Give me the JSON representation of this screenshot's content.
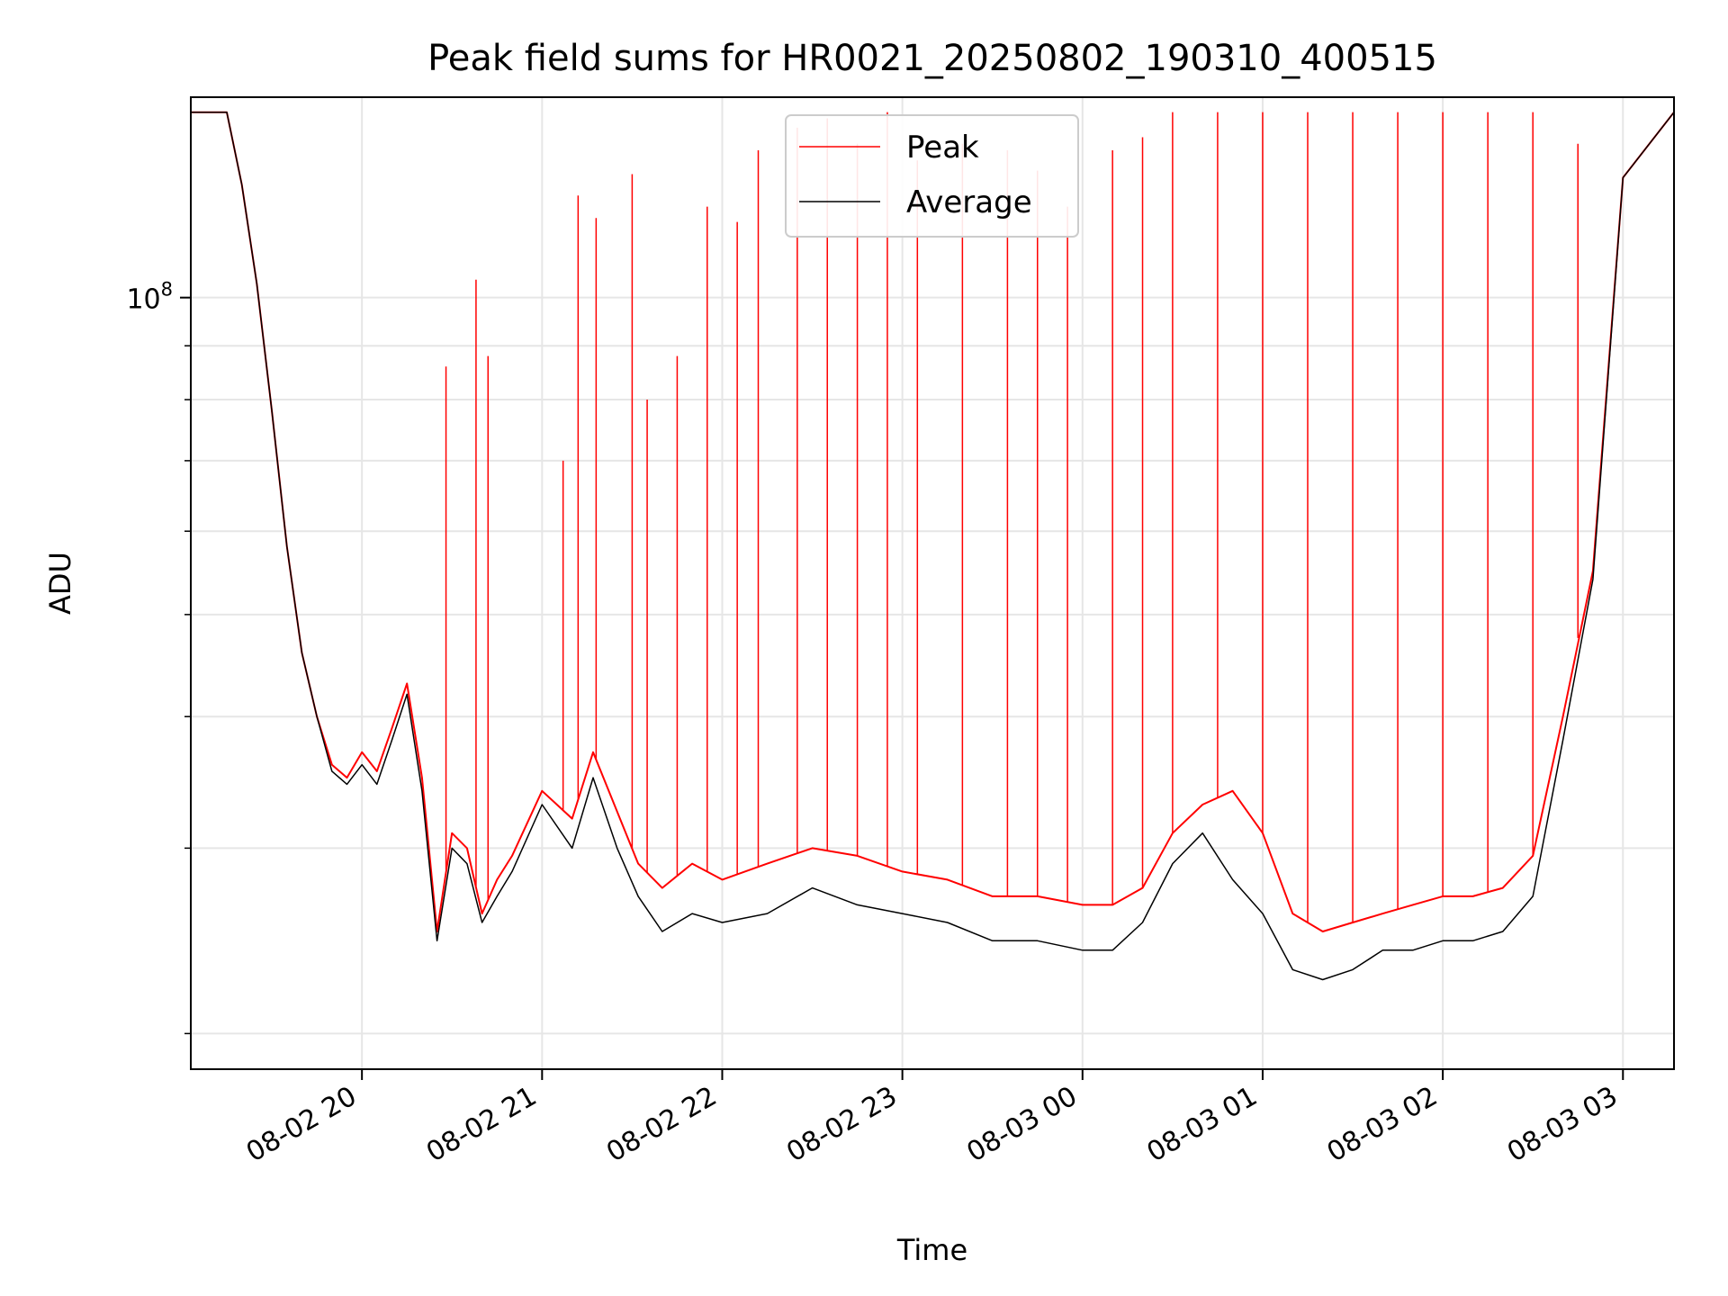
{
  "chart_data": {
    "type": "line",
    "title": "Peak field sums for HR0021_20250802_190310_400515",
    "xlabel": "Time",
    "ylabel": "ADU",
    "y_scale": "log",
    "grid": true,
    "legend_placement": "upper center",
    "x_tick_labels": [
      "08-02 20",
      "08-02 21",
      "08-02 22",
      "08-02 23",
      "08-03 00",
      "08-03 01",
      "08-03 02",
      "08-03 03"
    ],
    "x_ticks": [
      "2025-08-02T20:00",
      "2025-08-02T21:00",
      "2025-08-02T22:00",
      "2025-08-02T23:00",
      "2025-08-03T00:00",
      "2025-08-03T01:00",
      "2025-08-03T02:00",
      "2025-08-03T03:00"
    ],
    "xlim": [
      "2025-08-02T19:03",
      "2025-08-03T03:17"
    ],
    "ylim": [
      18500000,
      155000000
    ],
    "y_major_tick_label": "10^8",
    "y_major_tick": 100000000,
    "y_minor_ticks": [
      20000000,
      30000000,
      40000000,
      50000000,
      60000000,
      70000000,
      80000000,
      90000000,
      200000000
    ],
    "x": [
      "2025-08-02T19:03",
      "2025-08-02T19:15",
      "2025-08-02T19:20",
      "2025-08-02T19:25",
      "2025-08-02T19:30",
      "2025-08-02T19:35",
      "2025-08-02T19:40",
      "2025-08-02T19:45",
      "2025-08-02T19:50",
      "2025-08-02T19:55",
      "2025-08-02T20:00",
      "2025-08-02T20:05",
      "2025-08-02T20:10",
      "2025-08-02T20:15",
      "2025-08-02T20:20",
      "2025-08-02T20:25",
      "2025-08-02T20:30",
      "2025-08-02T20:35",
      "2025-08-02T20:40",
      "2025-08-02T20:45",
      "2025-08-02T20:50",
      "2025-08-02T21:00",
      "2025-08-02T21:10",
      "2025-08-02T21:17",
      "2025-08-02T21:25",
      "2025-08-02T21:32",
      "2025-08-02T21:40",
      "2025-08-02T21:50",
      "2025-08-02T22:00",
      "2025-08-02T22:15",
      "2025-08-02T22:30",
      "2025-08-02T22:45",
      "2025-08-02T23:00",
      "2025-08-02T23:15",
      "2025-08-02T23:30",
      "2025-08-02T23:45",
      "2025-08-03T00:00",
      "2025-08-03T00:10",
      "2025-08-03T00:20",
      "2025-08-03T00:30",
      "2025-08-03T00:40",
      "2025-08-03T00:50",
      "2025-08-03T01:00",
      "2025-08-03T01:10",
      "2025-08-03T01:20",
      "2025-08-03T01:30",
      "2025-08-03T01:40",
      "2025-08-03T01:50",
      "2025-08-03T02:00",
      "2025-08-03T02:10",
      "2025-08-03T02:20",
      "2025-08-03T02:30",
      "2025-08-03T02:40",
      "2025-08-03T02:50",
      "2025-08-03T03:00",
      "2025-08-03T03:17"
    ],
    "series": [
      {
        "name": "Peak",
        "color": "#ff0000",
        "values": [
          150000000,
          150000000,
          128000000,
          103000000,
          78000000,
          58000000,
          46000000,
          40000000,
          36000000,
          35000000,
          37000000,
          35500000,
          39000000,
          43000000,
          35000000,
          25000000,
          31000000,
          30000000,
          26000000,
          28000000,
          29500000,
          34000000,
          32000000,
          37000000,
          32500000,
          29000000,
          27500000,
          29000000,
          28000000,
          29000000,
          30000000,
          29500000,
          28500000,
          28000000,
          27000000,
          27000000,
          26500000,
          26500000,
          27500000,
          31000000,
          33000000,
          34000000,
          31000000,
          26000000,
          25000000,
          25500000,
          26000000,
          26500000,
          27000000,
          27000000,
          27500000,
          29500000,
          40000000,
          55000000,
          130000000,
          150000000
        ],
        "spikes": [
          [
            "2025-08-02T20:28",
            86000000
          ],
          [
            "2025-08-02T20:38",
            104000000
          ],
          [
            "2025-08-02T20:42",
            88000000
          ],
          [
            "2025-08-02T21:07",
            70000000
          ],
          [
            "2025-08-02T21:12",
            125000000
          ],
          [
            "2025-08-02T21:18",
            119000000
          ],
          [
            "2025-08-02T21:30",
            131000000
          ],
          [
            "2025-08-02T21:35",
            80000000
          ],
          [
            "2025-08-02T21:45",
            88000000
          ],
          [
            "2025-08-02T21:55",
            122000000
          ],
          [
            "2025-08-02T22:05",
            118000000
          ],
          [
            "2025-08-02T22:12",
            138000000
          ],
          [
            "2025-08-02T22:25",
            145000000
          ],
          [
            "2025-08-02T22:35",
            148000000
          ],
          [
            "2025-08-02T22:45",
            140000000
          ],
          [
            "2025-08-02T22:55",
            150000000
          ],
          [
            "2025-08-02T23:05",
            135000000
          ],
          [
            "2025-08-02T23:20",
            140000000
          ],
          [
            "2025-08-02T23:35",
            138000000
          ],
          [
            "2025-08-02T23:45",
            132000000
          ],
          [
            "2025-08-02T23:55",
            122000000
          ],
          [
            "2025-08-03T00:10",
            138000000
          ],
          [
            "2025-08-03T00:20",
            142000000
          ],
          [
            "2025-08-03T00:30",
            150000000
          ],
          [
            "2025-08-03T00:45",
            150000000
          ],
          [
            "2025-08-03T01:00",
            150000000
          ],
          [
            "2025-08-03T01:15",
            150000000
          ],
          [
            "2025-08-03T01:30",
            150000000
          ],
          [
            "2025-08-03T01:45",
            150000000
          ],
          [
            "2025-08-03T02:00",
            150000000
          ],
          [
            "2025-08-03T02:15",
            150000000
          ],
          [
            "2025-08-03T02:30",
            150000000
          ],
          [
            "2025-08-03T02:45",
            140000000
          ]
        ]
      },
      {
        "name": "Average",
        "color": "#000000",
        "values": [
          150000000,
          150000000,
          128000000,
          103000000,
          78000000,
          58000000,
          46000000,
          40000000,
          35500000,
          34500000,
          36000000,
          34500000,
          38000000,
          42000000,
          34000000,
          24500000,
          30000000,
          29000000,
          25500000,
          27000000,
          28500000,
          33000000,
          30000000,
          35000000,
          30000000,
          27000000,
          25000000,
          26000000,
          25500000,
          26000000,
          27500000,
          26500000,
          26000000,
          25500000,
          24500000,
          24500000,
          24000000,
          24000000,
          25500000,
          29000000,
          31000000,
          28000000,
          26000000,
          23000000,
          22500000,
          23000000,
          24000000,
          24000000,
          24500000,
          24500000,
          25000000,
          27000000,
          38000000,
          54000000,
          130000000,
          150000000
        ]
      }
    ]
  }
}
